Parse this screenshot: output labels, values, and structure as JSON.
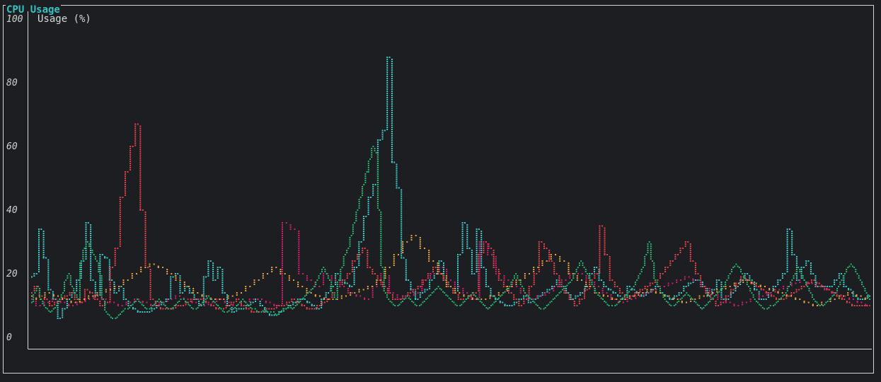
{
  "panel": {
    "title": "CPU Usage"
  },
  "chart_data": {
    "type": "scatter",
    "title": "",
    "legend_label": "Usage (%)",
    "legend_placement": "top-left",
    "ylim": [
      0,
      100
    ],
    "yticks": [
      "100",
      "80",
      "60",
      "40",
      "20",
      "0"
    ],
    "grid": false,
    "series": [
      {
        "color": "#3ec7c6",
        "values": [
          19,
          20,
          34,
          25,
          15,
          12,
          6,
          9,
          12,
          14,
          18,
          24,
          36,
          18,
          13,
          26,
          25,
          18,
          14,
          16,
          12,
          10,
          9,
          8,
          8,
          8,
          9,
          10,
          11,
          12,
          19,
          20,
          14,
          16,
          14,
          12,
          10,
          19,
          24,
          18,
          22,
          14,
          10,
          8,
          9,
          9,
          10,
          11,
          12,
          10,
          8,
          7,
          7,
          8,
          9,
          10,
          11,
          12,
          12,
          11,
          10,
          9,
          12,
          14,
          16,
          20,
          18,
          17,
          16,
          22,
          30,
          38,
          44,
          48,
          62,
          65,
          88,
          55,
          47,
          25,
          18,
          15,
          12,
          14,
          15,
          18,
          20,
          24,
          18,
          16,
          14,
          26,
          36,
          28,
          20,
          34,
          22,
          16,
          13,
          12,
          11,
          10,
          10,
          11,
          12,
          13,
          11,
          12,
          13,
          14,
          15,
          16,
          18,
          16,
          14,
          12,
          13,
          14,
          16,
          20,
          22,
          18,
          16,
          15,
          14,
          13,
          12,
          16,
          15,
          14,
          13,
          14,
          15,
          16,
          14,
          13,
          12,
          13,
          14,
          16,
          17,
          18,
          18,
          16,
          13,
          15,
          18,
          12,
          12,
          14,
          16,
          18,
          20,
          18,
          15,
          12,
          12,
          14,
          16,
          18,
          20,
          34,
          26,
          18,
          22,
          24,
          20,
          16,
          16,
          16,
          16,
          18,
          20,
          16,
          15,
          13,
          12,
          12,
          13
        ]
      },
      {
        "color": "#e0424a",
        "values": [
          14,
          16,
          13,
          12,
          10,
          11,
          12,
          13,
          14,
          12,
          11,
          15,
          14,
          12,
          10,
          11,
          22,
          28,
          44,
          52,
          60,
          67,
          40,
          22,
          12,
          10,
          9,
          9,
          9,
          10,
          10,
          11,
          12,
          12,
          12,
          11,
          10,
          9,
          9,
          10,
          11,
          12,
          10,
          9,
          8,
          8,
          8,
          9,
          9,
          10,
          10,
          11,
          12,
          11,
          10,
          9,
          9,
          10,
          11,
          12,
          14,
          16,
          18,
          20,
          24,
          26,
          28,
          22,
          20,
          18,
          16,
          14,
          12,
          12,
          13,
          14,
          15,
          16,
          18,
          20,
          22,
          20,
          18,
          16,
          14,
          12,
          12,
          13,
          14,
          26,
          30,
          28,
          22,
          18,
          16,
          14,
          12,
          10,
          12,
          16,
          20,
          30,
          28,
          24,
          20,
          16,
          14,
          12,
          10,
          12,
          15,
          18,
          20,
          35,
          26,
          18,
          16,
          14,
          12,
          13,
          14,
          15,
          16,
          17,
          18,
          20,
          22,
          24,
          26,
          28,
          30,
          24,
          20,
          16,
          14,
          12,
          10,
          11,
          13,
          15,
          17,
          19,
          18,
          17,
          16,
          15,
          14,
          13,
          12,
          12,
          13,
          14,
          15,
          16,
          17,
          18,
          17,
          16,
          15,
          14,
          13,
          12,
          11,
          10,
          10,
          10,
          10
        ]
      },
      {
        "color": "#cc1f6e",
        "values": [
          12,
          10,
          11,
          12,
          11,
          10,
          11,
          12,
          13,
          12,
          11,
          10,
          11,
          12,
          11,
          10,
          11,
          12,
          13,
          12,
          11,
          10,
          11,
          12,
          11,
          10,
          11,
          12,
          12,
          11,
          10,
          36,
          34,
          20,
          18,
          16,
          20,
          18,
          16,
          14,
          13,
          12,
          16,
          20,
          14,
          12,
          13,
          14,
          18,
          20,
          22,
          18,
          16,
          14,
          12,
          30,
          26,
          20,
          18,
          16,
          14,
          12,
          13,
          14,
          16,
          18,
          20,
          20,
          18,
          16,
          14,
          12,
          11,
          12,
          13,
          14,
          15,
          16,
          17,
          18,
          19,
          18,
          16,
          14,
          12,
          11,
          10,
          11,
          12,
          13,
          14,
          15,
          16,
          17,
          18,
          17,
          16,
          15,
          14,
          13,
          12,
          11,
          10
        ]
      },
      {
        "color": "#e9a23b",
        "values": [
          13,
          12,
          14,
          13,
          12,
          11,
          12,
          13,
          14,
          15,
          16,
          18,
          20,
          22,
          23,
          22,
          20,
          18,
          16,
          14,
          13,
          12,
          12,
          13,
          14,
          16,
          18,
          20,
          22,
          20,
          18,
          16,
          14,
          13,
          12,
          12,
          13,
          14,
          15,
          16,
          18,
          22,
          26,
          30,
          32,
          28,
          24,
          20,
          16,
          14,
          13,
          12,
          12,
          13,
          14,
          16,
          18,
          20,
          22,
          24,
          26,
          24,
          20,
          18,
          16,
          14,
          13,
          12,
          12,
          13,
          14,
          15,
          14,
          13,
          12,
          11,
          12,
          13,
          14,
          15,
          16,
          17,
          18,
          17,
          16,
          15,
          14,
          13,
          12,
          11,
          10,
          11,
          12,
          13,
          14,
          13,
          12
        ]
      },
      {
        "color": "#27b06e",
        "values": [
          11,
          14,
          16,
          12,
          10,
          9,
          8,
          9,
          10,
          12,
          14,
          18,
          20,
          16,
          14,
          12,
          24,
          28,
          30,
          28,
          26,
          24,
          20,
          12,
          8,
          7,
          6,
          6,
          7,
          8,
          9,
          9,
          10,
          11,
          12,
          11,
          10,
          9,
          9,
          10,
          11,
          12,
          11,
          10,
          9,
          9,
          10,
          11,
          12,
          12,
          11,
          10,
          9,
          9,
          10,
          11,
          12,
          13,
          12,
          11,
          10,
          9,
          8,
          8,
          9,
          9,
          10,
          11,
          12,
          11,
          10,
          9,
          9,
          8,
          8,
          9,
          8,
          8,
          8,
          7,
          8,
          9,
          9,
          10,
          9,
          10,
          11,
          12,
          13,
          14,
          15,
          16,
          18,
          20,
          22,
          20,
          18,
          14,
          12,
          18,
          22,
          26,
          28,
          32,
          36,
          40,
          44,
          48,
          52,
          56,
          60,
          58,
          40,
          22,
          14,
          12,
          11,
          10,
          10,
          11,
          12,
          13,
          12,
          11,
          10,
          10,
          11,
          12,
          13,
          14,
          15,
          16,
          15,
          14,
          13,
          12,
          11,
          10,
          10,
          11,
          12,
          13,
          14,
          13,
          12,
          11,
          10,
          9,
          10,
          11,
          12,
          13,
          14,
          15,
          16,
          18,
          20,
          18,
          16,
          14,
          13,
          12,
          11,
          10,
          9,
          9,
          10,
          11,
          12,
          13,
          14,
          15,
          16,
          17,
          18,
          20,
          22,
          24,
          22,
          20,
          18,
          16,
          14,
          13,
          12,
          11,
          10,
          10,
          10,
          11,
          12,
          13,
          14,
          15,
          16,
          18,
          20,
          22,
          26,
          30,
          24,
          18,
          16,
          14,
          12,
          11,
          10,
          10,
          11,
          12,
          13,
          14,
          13,
          12,
          11,
          10,
          9,
          10,
          11,
          12,
          13,
          14,
          15,
          16,
          18,
          20,
          22,
          23,
          22,
          20,
          18,
          16,
          14,
          12,
          11,
          10,
          9,
          9,
          10,
          10,
          11,
          12,
          13,
          14,
          16,
          18,
          20,
          22,
          20,
          18,
          16,
          14,
          12,
          11,
          10,
          10,
          11,
          12,
          13,
          14,
          16,
          18,
          20,
          22,
          23,
          22,
          20,
          18,
          16,
          14,
          12
        ]
      }
    ]
  }
}
